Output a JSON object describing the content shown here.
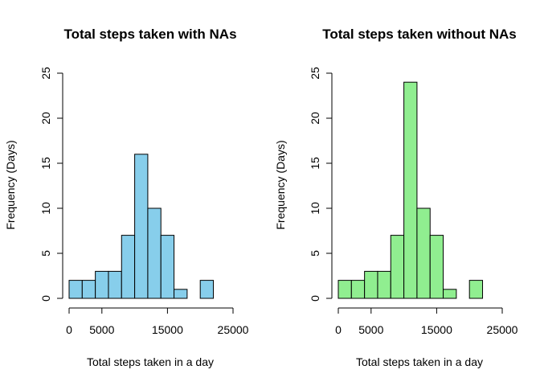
{
  "chart_data": [
    {
      "type": "bar",
      "title": "Total steps taken with NAs",
      "xlabel": "Total steps taken in a day",
      "ylabel": "Frequency (Days)",
      "bin_edges": [
        0,
        2000,
        4000,
        6000,
        8000,
        10000,
        12000,
        14000,
        16000,
        18000,
        20000,
        22000
      ],
      "values": [
        2,
        2,
        3,
        3,
        7,
        16,
        10,
        7,
        1,
        0,
        2
      ],
      "xticks": [
        0,
        5000,
        15000,
        25000
      ],
      "xtick_labels": [
        "0",
        "5000",
        "15000",
        "25000"
      ],
      "yticks": [
        0,
        5,
        10,
        15,
        20,
        25
      ],
      "ytick_labels": [
        "0",
        "5",
        "10",
        "15",
        "20",
        "25"
      ],
      "xlim": [
        0,
        25000
      ],
      "ylim": [
        0,
        25
      ],
      "grid": false,
      "fill_color": "#87ceeb",
      "border_color": "#000000"
    },
    {
      "type": "bar",
      "title": "Total steps taken without NAs",
      "xlabel": "Total steps taken in a day",
      "ylabel": "Frequency (Days)",
      "bin_edges": [
        0,
        2000,
        4000,
        6000,
        8000,
        10000,
        12000,
        14000,
        16000,
        18000,
        20000,
        22000
      ],
      "values": [
        2,
        2,
        3,
        3,
        7,
        24,
        10,
        7,
        1,
        0,
        2
      ],
      "xticks": [
        0,
        5000,
        15000,
        25000
      ],
      "xtick_labels": [
        "0",
        "5000",
        "15000",
        "25000"
      ],
      "yticks": [
        0,
        5,
        10,
        15,
        20,
        25
      ],
      "ytick_labels": [
        "0",
        "5",
        "10",
        "15",
        "20",
        "25"
      ],
      "xlim": [
        0,
        25000
      ],
      "ylim": [
        0,
        25
      ],
      "grid": false,
      "fill_color": "#90ee90",
      "border_color": "#000000"
    }
  ]
}
